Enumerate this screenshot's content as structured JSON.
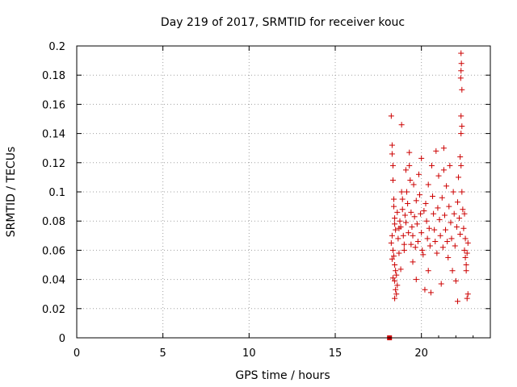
{
  "chart_data": {
    "type": "scatter",
    "title": "Day 219 of 2017, SRMTID for receiver kouc",
    "xlabel": "GPS time / hours",
    "ylabel": "SRMTID / TECUs",
    "xlim": [
      0,
      24
    ],
    "ylim": [
      0,
      0.2
    ],
    "xticks": [
      0,
      5,
      10,
      15,
      20
    ],
    "xtick_labels": [
      "0",
      "5",
      "10",
      "15",
      "20"
    ],
    "yticks": [
      0,
      0.02,
      0.04,
      0.06,
      0.08,
      0.1,
      0.12,
      0.14,
      0.16,
      0.18,
      0.2
    ],
    "ytick_labels": [
      "0",
      "0.02",
      "0.04",
      "0.06",
      "0.08",
      "0.1",
      "0.12",
      "0.14",
      "0.16",
      "0.18",
      "0.2"
    ],
    "grid": true,
    "marker": "+",
    "color": "#cc0000",
    "zero_marker": {
      "x": 18.15,
      "y": 0.0
    },
    "series": [
      {
        "name": "SRMTID",
        "points": [
          [
            18.25,
            0.152
          ],
          [
            18.3,
            0.132
          ],
          [
            18.3,
            0.126
          ],
          [
            18.35,
            0.118
          ],
          [
            18.35,
            0.108
          ],
          [
            18.4,
            0.095
          ],
          [
            18.4,
            0.09
          ],
          [
            18.45,
            0.082
          ],
          [
            18.45,
            0.078
          ],
          [
            18.5,
            0.074
          ],
          [
            18.3,
            0.07
          ],
          [
            18.25,
            0.065
          ],
          [
            18.35,
            0.06
          ],
          [
            18.4,
            0.056
          ],
          [
            18.3,
            0.054
          ],
          [
            18.45,
            0.05
          ],
          [
            18.5,
            0.046
          ],
          [
            18.55,
            0.043
          ],
          [
            18.35,
            0.041
          ],
          [
            18.45,
            0.039
          ],
          [
            18.6,
            0.036
          ],
          [
            18.5,
            0.033
          ],
          [
            18.55,
            0.03
          ],
          [
            18.45,
            0.027
          ],
          [
            18.6,
            0.086
          ],
          [
            18.65,
            0.068
          ],
          [
            18.7,
            0.058
          ],
          [
            18.75,
            0.08
          ],
          [
            18.8,
            0.076
          ],
          [
            18.85,
            0.146
          ],
          [
            18.85,
            0.1
          ],
          [
            18.9,
            0.095
          ],
          [
            18.9,
            0.088
          ],
          [
            18.95,
            0.07
          ],
          [
            19.0,
            0.064
          ],
          [
            19.0,
            0.06
          ],
          [
            18.7,
            0.075
          ],
          [
            18.8,
            0.047
          ],
          [
            19.05,
            0.084
          ],
          [
            19.1,
            0.079
          ],
          [
            19.1,
            0.115
          ],
          [
            19.15,
            0.1
          ],
          [
            19.2,
            0.092
          ],
          [
            19.25,
            0.072
          ],
          [
            19.3,
            0.127
          ],
          [
            19.3,
            0.118
          ],
          [
            19.35,
            0.108
          ],
          [
            19.4,
            0.086
          ],
          [
            19.4,
            0.064
          ],
          [
            19.45,
            0.076
          ],
          [
            19.5,
            0.07
          ],
          [
            19.5,
            0.052
          ],
          [
            19.55,
            0.105
          ],
          [
            19.6,
            0.083
          ],
          [
            19.65,
            0.062
          ],
          [
            19.7,
            0.094
          ],
          [
            19.7,
            0.04
          ],
          [
            19.75,
            0.078
          ],
          [
            19.8,
            0.066
          ],
          [
            19.85,
            0.112
          ],
          [
            19.9,
            0.098
          ],
          [
            19.95,
            0.085
          ],
          [
            20.0,
            0.072
          ],
          [
            20.0,
            0.123
          ],
          [
            20.05,
            0.06
          ],
          [
            20.1,
            0.057
          ],
          [
            20.15,
            0.087
          ],
          [
            20.2,
            0.033
          ],
          [
            20.25,
            0.092
          ],
          [
            20.3,
            0.08
          ],
          [
            20.35,
            0.068
          ],
          [
            20.4,
            0.105
          ],
          [
            20.4,
            0.046
          ],
          [
            20.45,
            0.075
          ],
          [
            20.5,
            0.063
          ],
          [
            20.55,
            0.031
          ],
          [
            20.6,
            0.118
          ],
          [
            20.65,
            0.097
          ],
          [
            20.7,
            0.085
          ],
          [
            20.75,
            0.074
          ],
          [
            20.8,
            0.066
          ],
          [
            20.85,
            0.128
          ],
          [
            20.9,
            0.058
          ],
          [
            20.95,
            0.089
          ],
          [
            21.0,
            0.111
          ],
          [
            21.05,
            0.081
          ],
          [
            21.1,
            0.07
          ],
          [
            21.15,
            0.037
          ],
          [
            21.2,
            0.096
          ],
          [
            21.25,
            0.062
          ],
          [
            21.3,
            0.13
          ],
          [
            21.3,
            0.115
          ],
          [
            21.35,
            0.084
          ],
          [
            21.4,
            0.074
          ],
          [
            21.45,
            0.104
          ],
          [
            21.5,
            0.066
          ],
          [
            21.55,
            0.055
          ],
          [
            21.6,
            0.09
          ],
          [
            21.65,
            0.118
          ],
          [
            21.7,
            0.079
          ],
          [
            21.75,
            0.068
          ],
          [
            21.8,
            0.046
          ],
          [
            21.85,
            0.1
          ],
          [
            21.9,
            0.085
          ],
          [
            21.95,
            0.063
          ],
          [
            22.0,
            0.039
          ],
          [
            22.05,
            0.076
          ],
          [
            22.1,
            0.093
          ],
          [
            22.1,
            0.025
          ],
          [
            22.15,
            0.11
          ],
          [
            22.2,
            0.082
          ],
          [
            22.25,
            0.071
          ],
          [
            22.3,
            0.195
          ],
          [
            22.32,
            0.188
          ],
          [
            22.3,
            0.183
          ],
          [
            22.28,
            0.178
          ],
          [
            22.35,
            0.17
          ],
          [
            22.3,
            0.152
          ],
          [
            22.35,
            0.145
          ],
          [
            22.3,
            0.14
          ],
          [
            22.25,
            0.124
          ],
          [
            22.3,
            0.118
          ],
          [
            22.35,
            0.1
          ],
          [
            22.4,
            0.088
          ],
          [
            22.45,
            0.075
          ],
          [
            22.5,
            0.06
          ],
          [
            22.55,
            0.055
          ],
          [
            22.6,
            0.05
          ],
          [
            22.6,
            0.046
          ],
          [
            22.65,
            0.058
          ],
          [
            22.7,
            0.03
          ],
          [
            22.65,
            0.027
          ],
          [
            22.7,
            0.065
          ],
          [
            22.5,
            0.085
          ],
          [
            22.55,
            0.068
          ]
        ]
      }
    ]
  }
}
